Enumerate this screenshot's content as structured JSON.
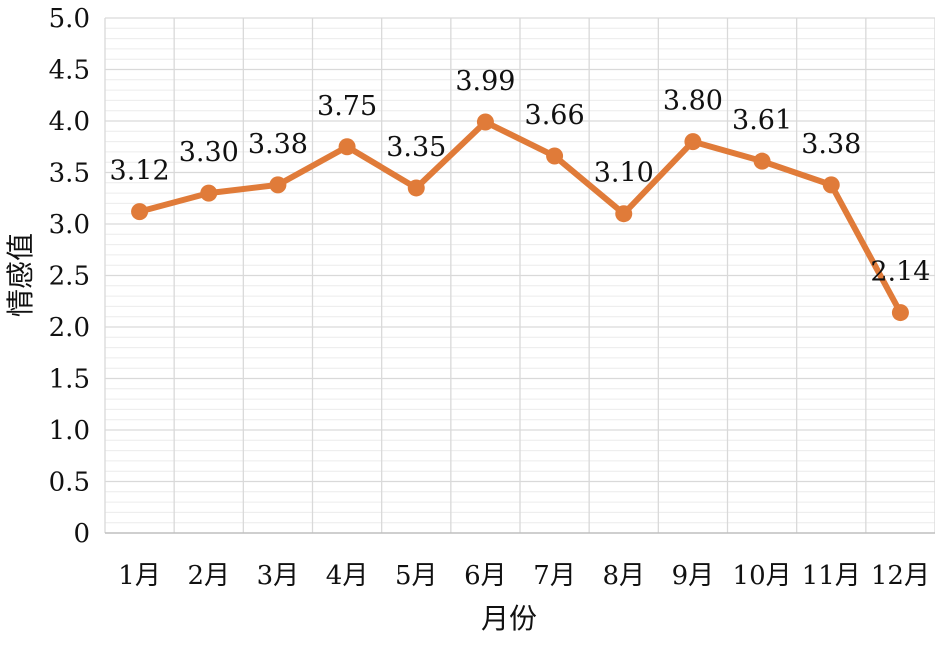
{
  "chart_data": {
    "type": "line",
    "categories": [
      "1月",
      "2月",
      "3月",
      "4月",
      "5月",
      "6月",
      "7月",
      "8月",
      "9月",
      "10月",
      "11月",
      "12月"
    ],
    "series": [
      {
        "values": [
          3.12,
          3.3,
          3.38,
          3.75,
          3.35,
          3.99,
          3.66,
          3.1,
          3.8,
          3.61,
          3.38,
          2.14
        ],
        "labels": [
          "3.12",
          "3.30",
          "3.38",
          "3.75",
          "3.35",
          "3.99",
          "3.66",
          "3.10",
          "3.80",
          "3.61",
          "3.38",
          "2.14"
        ],
        "color": "#E07B39"
      }
    ],
    "xlabel": "月份",
    "ylabel": "情感值",
    "ylim": [
      0,
      5
    ],
    "yticks": [
      "0",
      "0.5",
      "1.0",
      "1.5",
      "2.0",
      "2.5",
      "3.0",
      "3.5",
      "4.0",
      "4.5",
      "5.0"
    ],
    "grid": true,
    "colors": {
      "line": "#E07B39",
      "major_grid": "#d9d9d9",
      "minor_grid": "#ececec",
      "axis": "#bfbfbf"
    }
  }
}
